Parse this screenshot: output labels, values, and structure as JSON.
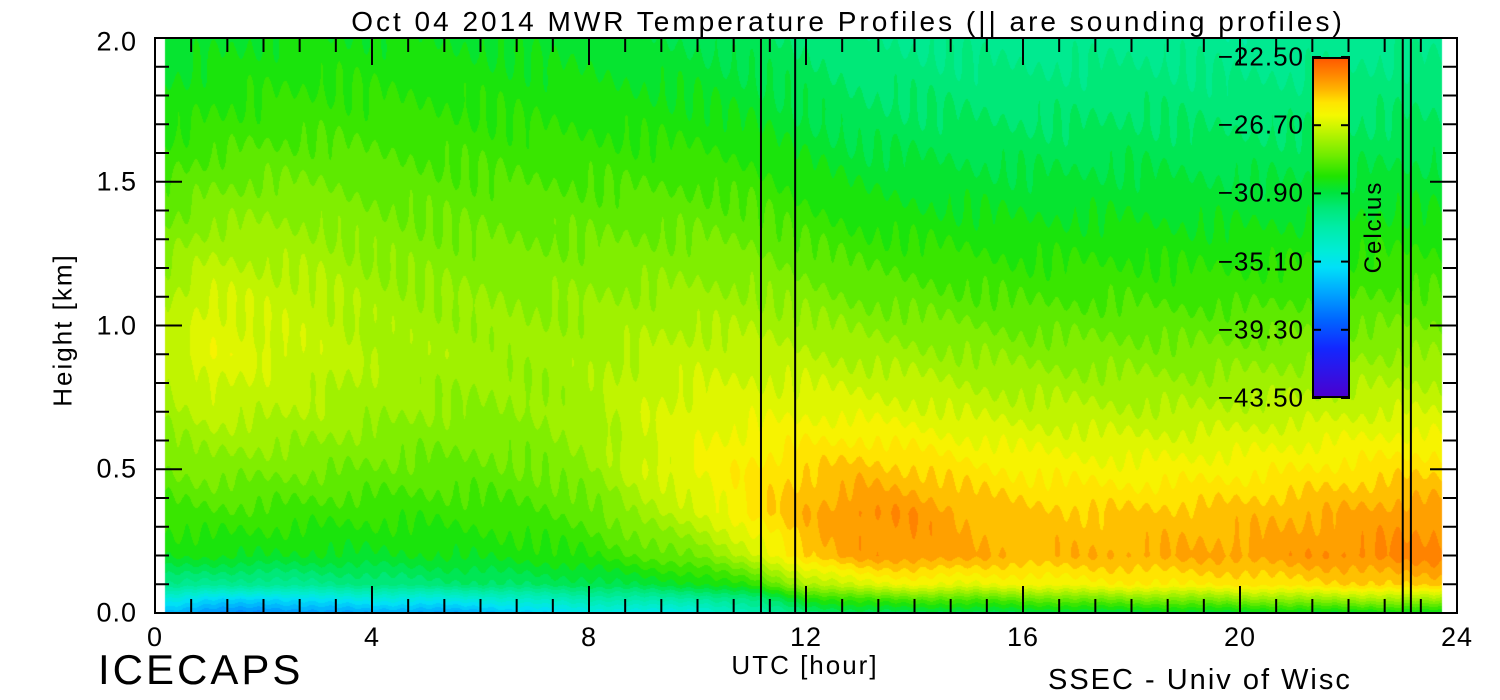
{
  "title": "Oct 04 2014 MWR Temperature Profiles (|| are sounding profiles)",
  "x_axis": {
    "label": "UTC [hour]",
    "range": [
      0,
      24
    ],
    "tick_labels": [
      "0",
      "4",
      "8",
      "12",
      "16",
      "20",
      "24"
    ],
    "tick_hours": [
      0,
      4,
      8,
      12,
      16,
      20,
      24
    ]
  },
  "y_axis": {
    "label": "Height [km]",
    "range": [
      0,
      2
    ],
    "tick_labels": [
      "0.0",
      "0.5",
      "1.0",
      "1.5",
      "2.0"
    ],
    "tick_km": [
      0.0,
      0.5,
      1.0,
      1.5,
      2.0
    ]
  },
  "colorbar": {
    "label": "Celcius",
    "tick_labels": [
      "−22.50",
      "−26.70",
      "−30.90",
      "−35.10",
      "−39.30",
      "−43.50"
    ],
    "top_value": -22.5,
    "bottom_value": -43.5
  },
  "footer": {
    "left": "ICECAPS",
    "right": "SSEC - Univ of Wisc"
  },
  "chart_data": {
    "type": "heatmap",
    "title": "Oct 04 2014 MWR Temperature Profiles (|| are sounding profiles)",
    "xlabel": "UTC [hour]",
    "ylabel": "Height [km]",
    "unit": "Celcius",
    "x_hours": [
      0,
      1,
      2,
      3,
      4,
      5,
      6,
      7,
      8,
      9,
      10,
      11,
      12,
      13,
      14,
      15,
      16,
      17,
      18,
      19,
      20,
      21,
      22,
      23,
      24
    ],
    "heights_km": [
      2.0,
      1.7,
      1.4,
      1.1,
      0.9,
      0.7,
      0.5,
      0.35,
      0.2,
      0.1,
      0.05,
      0.0
    ],
    "values_by_height_row": [
      [
        -30.8,
        -30.5,
        -30.3,
        -30.2,
        -30.2,
        -30.3,
        -30.4,
        -30.5,
        -30.6,
        -30.8,
        -31.0,
        -31.3,
        -31.6,
        -32.0,
        -32.2,
        -32.3,
        -32.4,
        -32.4,
        -32.3,
        -32.4,
        -32.5,
        -32.5,
        -32.4,
        -32.3,
        -32.3
      ],
      [
        -30.0,
        -29.6,
        -29.4,
        -29.3,
        -29.4,
        -29.5,
        -29.6,
        -29.7,
        -29.8,
        -29.9,
        -30.0,
        -30.3,
        -30.8,
        -31.2,
        -31.3,
        -31.4,
        -31.5,
        -31.5,
        -31.4,
        -31.5,
        -31.6,
        -31.6,
        -31.5,
        -31.4,
        -31.4
      ],
      [
        -28.8,
        -28.2,
        -28.0,
        -28.1,
        -28.4,
        -28.6,
        -28.7,
        -28.8,
        -28.8,
        -28.8,
        -28.8,
        -29.0,
        -29.6,
        -30.0,
        -30.2,
        -30.3,
        -30.4,
        -30.4,
        -30.4,
        -30.5,
        -30.5,
        -30.5,
        -30.4,
        -30.3,
        -30.3
      ],
      [
        -27.6,
        -26.6,
        -26.9,
        -27.1,
        -27.6,
        -27.8,
        -27.9,
        -28.0,
        -27.9,
        -27.8,
        -27.7,
        -27.8,
        -28.2,
        -28.6,
        -28.8,
        -29.0,
        -29.2,
        -29.2,
        -29.2,
        -29.3,
        -29.3,
        -29.2,
        -29.1,
        -29.0,
        -29.0
      ],
      [
        -27.2,
        -26.2,
        -26.6,
        -26.9,
        -27.3,
        -27.5,
        -27.6,
        -27.7,
        -27.5,
        -27.2,
        -27.0,
        -27.0,
        -27.2,
        -27.5,
        -27.7,
        -27.9,
        -28.1,
        -28.2,
        -28.2,
        -28.3,
        -28.2,
        -28.1,
        -28.0,
        -27.9,
        -27.9
      ],
      [
        -27.8,
        -27.0,
        -27.2,
        -27.4,
        -27.7,
        -27.9,
        -28.0,
        -27.9,
        -27.5,
        -26.8,
        -26.4,
        -26.3,
        -26.2,
        -26.3,
        -26.5,
        -26.8,
        -27.0,
        -27.1,
        -27.2,
        -27.2,
        -27.1,
        -27.0,
        -26.8,
        -26.7,
        -26.7
      ],
      [
        -28.6,
        -28.2,
        -28.3,
        -28.4,
        -28.6,
        -28.7,
        -28.7,
        -28.5,
        -28.0,
        -26.8,
        -26.0,
        -25.4,
        -24.9,
        -24.6,
        -24.9,
        -25.3,
        -25.6,
        -25.8,
        -25.9,
        -25.8,
        -25.7,
        -25.5,
        -25.3,
        -25.1,
        -25.0
      ],
      [
        -29.4,
        -29.2,
        -29.3,
        -29.4,
        -29.5,
        -29.5,
        -29.4,
        -29.2,
        -28.8,
        -27.6,
        -26.8,
        -25.2,
        -24.4,
        -23.7,
        -23.8,
        -24.4,
        -24.7,
        -24.8,
        -24.8,
        -24.7,
        -24.6,
        -24.4,
        -24.2,
        -24.0,
        -23.9
      ],
      [
        -30.2,
        -30.2,
        -30.3,
        -30.4,
        -30.4,
        -30.3,
        -30.2,
        -30.0,
        -29.7,
        -29.0,
        -28.4,
        -27.0,
        -24.8,
        -24.0,
        -23.8,
        -24.2,
        -24.4,
        -24.4,
        -24.3,
        -24.2,
        -24.1,
        -23.9,
        -23.7,
        -23.5,
        -23.4
      ],
      [
        -32.0,
        -32.5,
        -32.5,
        -32.3,
        -32.0,
        -31.8,
        -31.6,
        -31.4,
        -31.2,
        -30.8,
        -30.4,
        -29.6,
        -27.5,
        -26.5,
        -26.0,
        -26.2,
        -26.0,
        -25.8,
        -25.6,
        -25.5,
        -25.4,
        -25.2,
        -25.0,
        -24.8,
        -24.7
      ],
      [
        -34.5,
        -35.5,
        -35.8,
        -35.2,
        -34.8,
        -34.8,
        -34.5,
        -33.8,
        -33.2,
        -33.0,
        -32.8,
        -32.0,
        -30.0,
        -29.3,
        -29.0,
        -29.0,
        -28.8,
        -28.5,
        -28.3,
        -28.2,
        -28.0,
        -27.8,
        -27.6,
        -27.5,
        -27.4
      ],
      [
        -36.5,
        -37.6,
        -37.8,
        -37.3,
        -37.0,
        -37.2,
        -36.8,
        -36.0,
        -35.0,
        -35.2,
        -34.8,
        -33.5,
        -31.8,
        -31.3,
        -31.2,
        -31.2,
        -31.0,
        -31.0,
        -30.8,
        -30.8,
        -30.7,
        -30.6,
        -30.5,
        -30.5,
        -30.4
      ]
    ],
    "data_extent_hours": [
      0.18,
      23.72
    ],
    "sounding_hours": [
      11.17,
      11.8,
      23.0,
      23.15
    ],
    "value_range": [
      -43.5,
      -22.5
    ],
    "contour_step": 0.6,
    "colormap": [
      {
        "t": -43.5,
        "c": "#4a00d0"
      },
      {
        "t": -40.5,
        "c": "#1228ff"
      },
      {
        "t": -38.8,
        "c": "#0064ff"
      },
      {
        "t": -37.0,
        "c": "#00a8ff"
      },
      {
        "t": -35.5,
        "c": "#00e0f8"
      },
      {
        "t": -34.5,
        "c": "#00ecd8"
      },
      {
        "t": -33.0,
        "c": "#00eca8"
      },
      {
        "t": -31.8,
        "c": "#00e878"
      },
      {
        "t": -30.8,
        "c": "#00e43c"
      },
      {
        "t": -29.8,
        "c": "#20e400"
      },
      {
        "t": -28.5,
        "c": "#70ec00"
      },
      {
        "t": -27.0,
        "c": "#c0f400"
      },
      {
        "t": -26.0,
        "c": "#f4f800"
      },
      {
        "t": -25.2,
        "c": "#ffe400"
      },
      {
        "t": -24.4,
        "c": "#ffb400"
      },
      {
        "t": -23.6,
        "c": "#ff8c00"
      },
      {
        "t": -22.5,
        "c": "#ff5a00"
      }
    ]
  }
}
